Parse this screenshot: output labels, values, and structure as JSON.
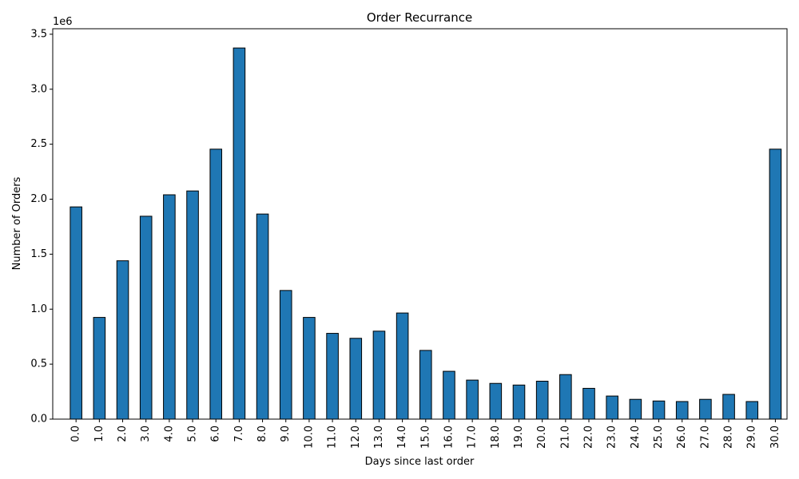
{
  "chart_data": {
    "type": "bar",
    "title": "Order Recurrance",
    "xlabel": "Days since last order",
    "ylabel": "Number of Orders",
    "y_offset_label": "1e6",
    "categories": [
      "0.0",
      "1.0",
      "2.0",
      "3.0",
      "4.0",
      "5.0",
      "6.0",
      "7.0",
      "8.0",
      "9.0",
      "10.0",
      "11.0",
      "12.0",
      "13.0",
      "14.0",
      "15.0",
      "16.0",
      "17.0",
      "18.0",
      "19.0",
      "20.0",
      "21.0",
      "22.0",
      "23.0",
      "24.0",
      "25.0",
      "26.0",
      "27.0",
      "28.0",
      "29.0",
      "30.0"
    ],
    "values": [
      1930000,
      925000,
      1440000,
      1845000,
      2040000,
      2075000,
      2455000,
      3375000,
      1865000,
      1170000,
      925000,
      780000,
      735000,
      800000,
      965000,
      625000,
      435000,
      355000,
      325000,
      310000,
      345000,
      405000,
      280000,
      210000,
      180000,
      165000,
      160000,
      180000,
      225000,
      160000,
      2455000
    ],
    "ylim": [
      0,
      3550000
    ],
    "y_ticks": [
      0,
      500000,
      1000000,
      1500000,
      2000000,
      2500000,
      3000000,
      3500000
    ],
    "y_tick_labels": [
      "0.0",
      "0.5",
      "1.0",
      "1.5",
      "2.0",
      "2.5",
      "3.0",
      "3.5"
    ],
    "grid": false,
    "bar_color": "#1f77b4",
    "bar_edge_color": "#000000"
  }
}
